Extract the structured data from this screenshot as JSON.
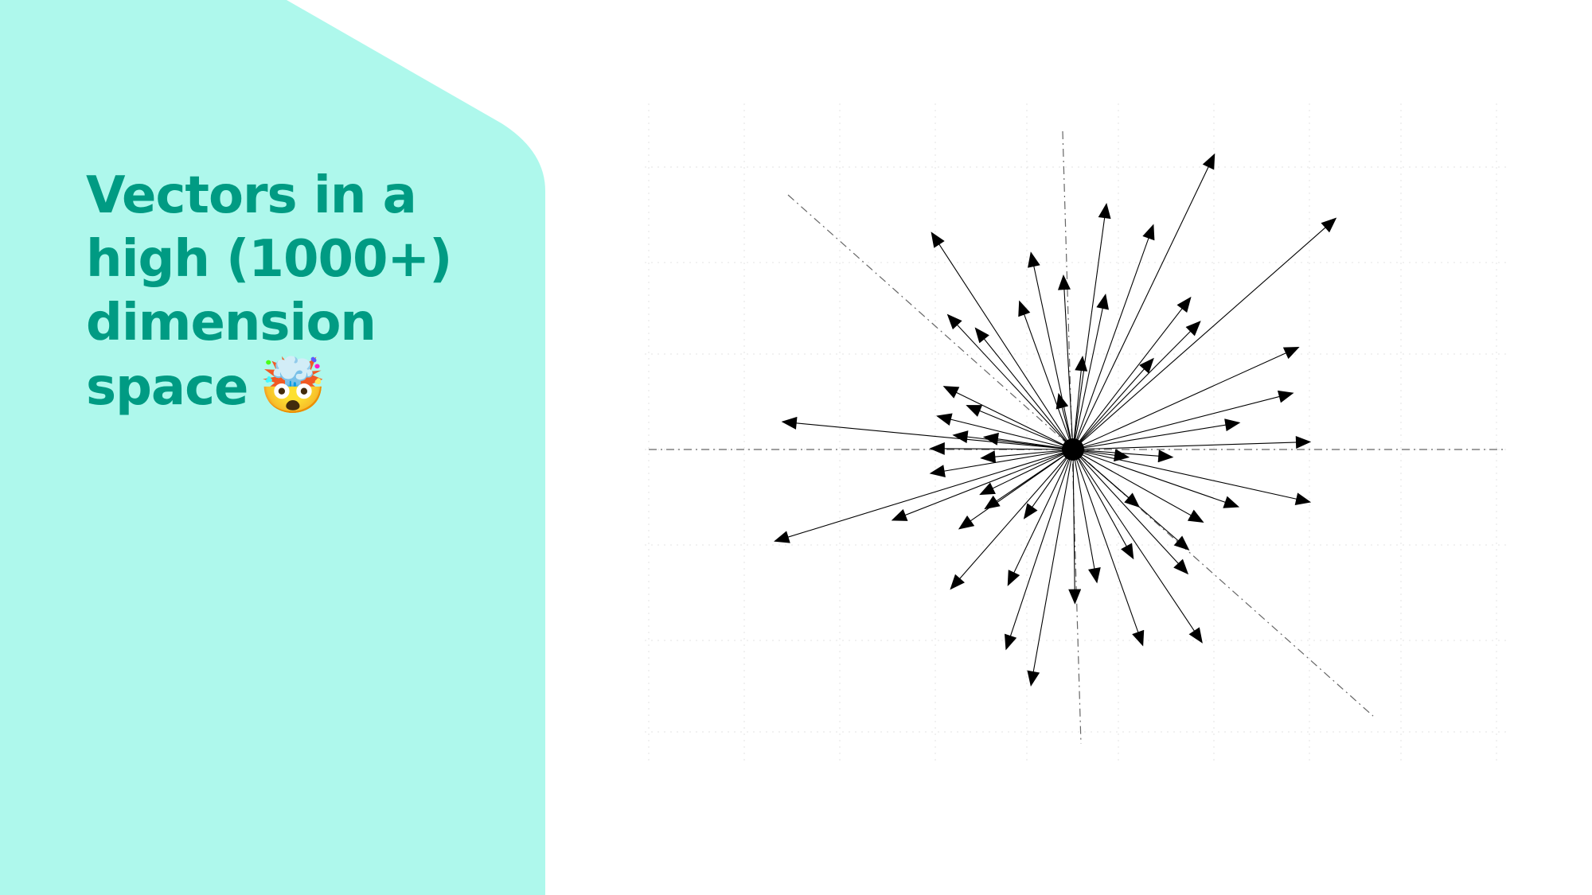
{
  "slide": {
    "title_lines": [
      "Vectors in a",
      "high (1000+)",
      "dimension",
      "space"
    ],
    "emoji": "🤯",
    "emoji_name": "exploding-head-icon"
  },
  "colors": {
    "panel": "#aef8ec",
    "title": "#009b83",
    "vector": "#000000",
    "axis": "#666666",
    "grid": "#e3e3e3"
  },
  "diagram": {
    "description_type": "vectors-radiating-from-origin",
    "vector_count": 52,
    "vectors": [
      [
        1.48,
        3.09
      ],
      [
        0.35,
        2.57
      ],
      [
        -1.48,
        2.27
      ],
      [
        -0.44,
        2.06
      ],
      [
        0.84,
        2.35
      ],
      [
        -0.1,
        1.82
      ],
      [
        0.34,
        1.62
      ],
      [
        -0.56,
        1.55
      ],
      [
        -1.31,
        1.41
      ],
      [
        -1.02,
        1.27
      ],
      [
        1.23,
        1.59
      ],
      [
        1.33,
        1.34
      ],
      [
        -0.15,
        0.58
      ],
      [
        2.75,
        2.42
      ],
      [
        2.36,
        1.07
      ],
      [
        2.3,
        0.59
      ],
      [
        1.74,
        0.28
      ],
      [
        -1.35,
        0.66
      ],
      [
        -1.11,
        0.46
      ],
      [
        -1.42,
        0.35
      ],
      [
        -3.04,
        0.29
      ],
      [
        -0.93,
        0.13
      ],
      [
        2.48,
        0.08
      ],
      [
        -1.49,
        0.01
      ],
      [
        0.58,
        -0.08
      ],
      [
        -0.96,
        -0.09
      ],
      [
        -1.49,
        -0.25
      ],
      [
        -3.12,
        -0.96
      ],
      [
        2.48,
        -0.55
      ],
      [
        -0.97,
        -0.47
      ],
      [
        1.73,
        -0.6
      ],
      [
        -1.89,
        -0.74
      ],
      [
        -1.19,
        -0.83
      ],
      [
        0.69,
        -0.6
      ],
      [
        1.36,
        -0.76
      ],
      [
        1.21,
        -1.05
      ],
      [
        -0.51,
        -0.72
      ],
      [
        1.2,
        -1.3
      ],
      [
        -1.28,
        -1.46
      ],
      [
        -0.68,
        -1.42
      ],
      [
        0.63,
        -1.14
      ],
      [
        0.25,
        -1.39
      ],
      [
        0.02,
        -1.61
      ],
      [
        -0.7,
        -2.09
      ],
      [
        0.73,
        -2.05
      ],
      [
        1.35,
        -2.02
      ],
      [
        -0.44,
        -2.47
      ],
      [
        -0.92,
        -0.62
      ],
      [
        1.04,
        -0.08
      ],
      [
        0.84,
        0.95
      ],
      [
        -1.25,
        0.15
      ],
      [
        0.1,
        0.97
      ]
    ]
  }
}
